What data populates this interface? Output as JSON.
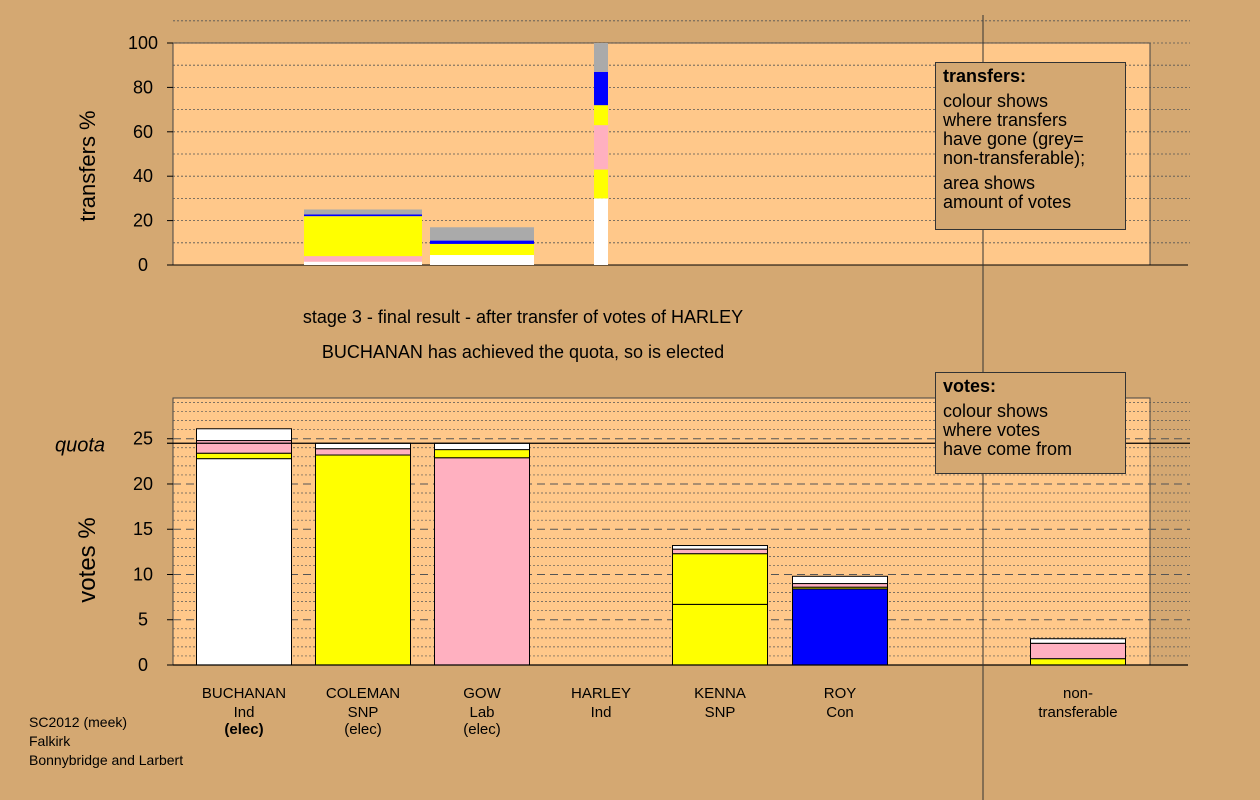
{
  "stage_title": "stage 3 - final result - after transfer of votes of HARLEY",
  "stage_subtitle": "BUCHANAN has achieved the quota, so is elected",
  "footer": {
    "line1": "SC2012 (meek)",
    "line2": "Falkirk",
    "line3": "Bonnybridge and Larbert"
  },
  "transfers_legend": {
    "title": "transfers:",
    "lines": [
      "colour shows",
      "where transfers",
      "have gone (grey=",
      "non-transferable);"
    ],
    "lines2": [
      "area shows",
      "amount of votes"
    ]
  },
  "votes_legend": {
    "title": "votes:",
    "lines": [
      "colour shows",
      "where votes",
      "have come from"
    ]
  },
  "colors": {
    "background": "#D4A872",
    "plot_background": "#FFC88A",
    "BUCHANAN": "#FFFFFF",
    "COLEMAN": "#FFFF00",
    "GOW": "#FFB0C0",
    "KENNA": "#FFFF00",
    "ROY": "#0000FF",
    "non-transferable": "#AAAAAA"
  },
  "chart_data": [
    {
      "type": "bar",
      "ylabel": "transfers %",
      "ylim": [
        0,
        100
      ],
      "yticks": [
        0,
        20,
        40,
        60,
        80,
        100
      ],
      "categories": [
        "BUCHANAN",
        "COLEMAN",
        "GOW",
        "HARLEY"
      ],
      "bars": [
        {
          "candidate": "COLEMAN",
          "segments": [
            {
              "to": "BUCHANAN",
              "value": 1.5,
              "color": "#FFFFFF"
            },
            {
              "to": "GOW",
              "value": 2.5,
              "color": "#FFB0C0"
            },
            {
              "to": "KENNA",
              "value": 18.0,
              "color": "#FFFF00"
            },
            {
              "to": "ROY",
              "value": 0.8,
              "color": "#0000FF"
            },
            {
              "to": "non-transferable",
              "value": 2.2,
              "color": "#AAAAAA"
            }
          ]
        },
        {
          "candidate": "GOW",
          "segments": [
            {
              "to": "BUCHANAN",
              "value": 4.5,
              "color": "#FFFFFF"
            },
            {
              "to": "COLEMAN",
              "value": 5.0,
              "color": "#FFFF00"
            },
            {
              "to": "ROY",
              "value": 1.5,
              "color": "#0000FF"
            },
            {
              "to": "non-transferable",
              "value": 6.0,
              "color": "#AAAAAA"
            }
          ]
        },
        {
          "candidate": "HARLEY",
          "segments": [
            {
              "to": "BUCHANAN",
              "value": 30.0,
              "color": "#FFFFFF"
            },
            {
              "to": "COLEMAN",
              "value": 13.0,
              "color": "#FFFF00"
            },
            {
              "to": "GOW",
              "value": 20.0,
              "color": "#FFB0C0"
            },
            {
              "to": "KENNA",
              "value": 9.0,
              "color": "#FFFF00"
            },
            {
              "to": "ROY",
              "value": 15.0,
              "color": "#0000FF"
            },
            {
              "to": "non-transferable",
              "value": 13.0,
              "color": "#AAAAAA"
            }
          ]
        }
      ]
    },
    {
      "type": "bar",
      "ylabel": "votes %",
      "ylim": [
        0,
        30
      ],
      "yticks": [
        0,
        5,
        10,
        15,
        20,
        25
      ],
      "quota_label": "quota",
      "quota": 24.5,
      "candidates": [
        {
          "name": "BUCHANAN",
          "party": "Ind",
          "status": "(elec)",
          "status_bold": true,
          "segments": [
            {
              "from": "BUCHANAN",
              "value": 22.8,
              "color": "#FFFFFF"
            },
            {
              "from": "COLEMAN",
              "value": 0.6,
              "color": "#FFFF00"
            },
            {
              "from": "GOW",
              "value": 1.4,
              "color": "#FFB0C0"
            },
            {
              "from": "HARLEY",
              "value": 1.3,
              "color": "#FFFFFF"
            }
          ]
        },
        {
          "name": "COLEMAN",
          "party": "SNP",
          "status": "(elec)",
          "status_bold": false,
          "segments": [
            {
              "from": "COLEMAN",
              "value": 23.2,
              "color": "#FFFF00"
            },
            {
              "from": "GOW",
              "value": 0.7,
              "color": "#FFB0C0"
            },
            {
              "from": "HARLEY",
              "value": 0.6,
              "color": "#FFFFFF"
            }
          ]
        },
        {
          "name": "GOW",
          "party": "Lab",
          "status": "(elec)",
          "status_bold": false,
          "segments": [
            {
              "from": "GOW",
              "value": 22.9,
              "color": "#FFB0C0"
            },
            {
              "from": "COLEMAN",
              "value": 0.9,
              "color": "#FFFF00"
            },
            {
              "from": "HARLEY",
              "value": 0.7,
              "color": "#FFFFFF"
            }
          ]
        },
        {
          "name": "HARLEY",
          "party": "Ind",
          "status": "",
          "status_bold": false,
          "segments": []
        },
        {
          "name": "KENNA",
          "party": "SNP",
          "status": "",
          "status_bold": false,
          "segments": [
            {
              "from": "KENNA",
              "value": 6.7,
              "color": "#FFFF00"
            },
            {
              "from": "COLEMAN",
              "value": 5.6,
              "color": "#FFFF00"
            },
            {
              "from": "GOW",
              "value": 0.5,
              "color": "#FFB0C0"
            },
            {
              "from": "HARLEY",
              "value": 0.4,
              "color": "#FFFFFF"
            }
          ]
        },
        {
          "name": "ROY",
          "party": "Con",
          "status": "",
          "status_bold": false,
          "segments": [
            {
              "from": "ROY",
              "value": 8.4,
              "color": "#0000FF"
            },
            {
              "from": "GOW",
              "value": 0.2,
              "color": "#FFFF00"
            },
            {
              "from": "COLEMAN",
              "value": 0.4,
              "color": "#FFB0C0"
            },
            {
              "from": "HARLEY",
              "value": 0.8,
              "color": "#FFFFFF"
            }
          ]
        }
      ],
      "nontransferable": {
        "label_line1": "non-",
        "label_line2": "transferable",
        "segments": [
          {
            "from": "COLEMAN",
            "value": 0.7,
            "color": "#FFFF00"
          },
          {
            "from": "GOW",
            "value": 1.7,
            "color": "#FFB0C0"
          },
          {
            "from": "HARLEY",
            "value": 0.5,
            "color": "#FFFFFF"
          }
        ]
      }
    }
  ]
}
